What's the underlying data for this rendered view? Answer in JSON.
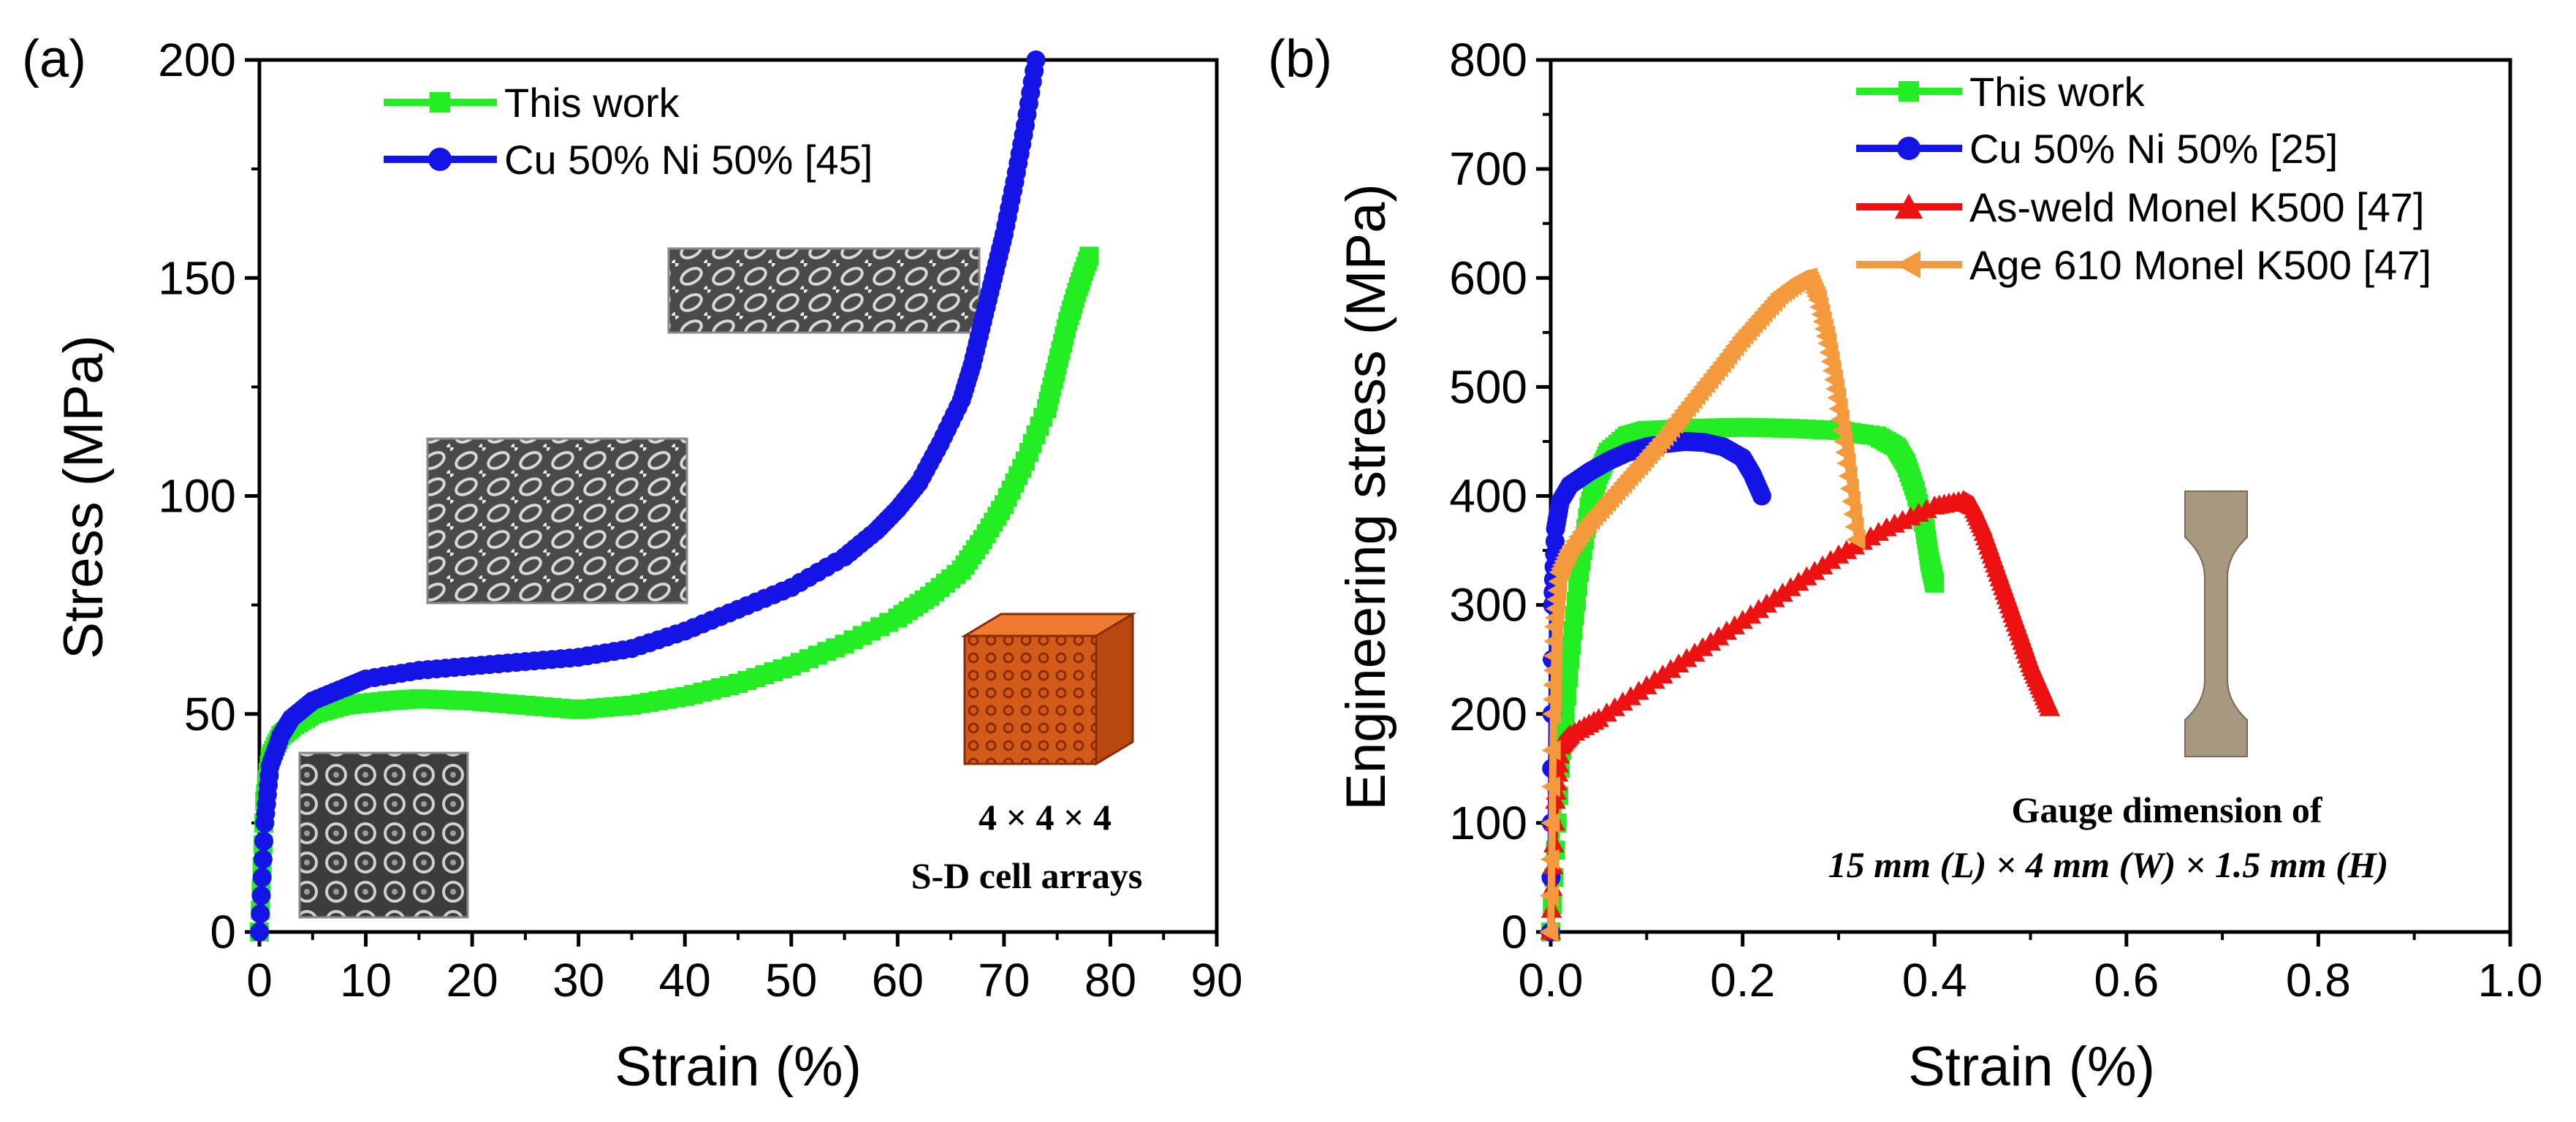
{
  "chart_data": [
    {
      "type": "scatter",
      "panel_label": "(a)",
      "xlabel": "Strain (%)",
      "ylabel": "Stress (MPa)",
      "xlim": [
        0,
        90
      ],
      "ylim": [
        0,
        200
      ],
      "xticks": [
        "0",
        "10",
        "20",
        "30",
        "40",
        "50",
        "60",
        "70",
        "80",
        "90"
      ],
      "yticks": [
        "0",
        "50",
        "100",
        "150",
        "200"
      ],
      "legend_position": "top-left",
      "annotation_lines": [
        "4 × 4 × 4",
        "S-D cell arrays"
      ],
      "series": [
        {
          "name": "This work",
          "color": "#22ee22",
          "marker": "square",
          "x": [
            0,
            0.5,
            1,
            2,
            3,
            5,
            8,
            12,
            15,
            20,
            25,
            30,
            35,
            40,
            45,
            50,
            55,
            60,
            63,
            66,
            68,
            70,
            72,
            74,
            75,
            76,
            77,
            78
          ],
          "y": [
            0,
            30,
            40,
            45,
            47,
            50,
            52,
            53,
            53.5,
            53,
            52,
            51,
            52,
            54,
            57,
            61,
            66,
            72,
            77,
            83,
            90,
            98,
            108,
            120,
            130,
            140,
            148,
            155
          ]
        },
        {
          "name": "Cu 50% Ni 50%  [45]",
          "color": "#1414e6",
          "marker": "circle",
          "x": [
            0,
            0.5,
            1,
            2,
            3,
            5,
            8,
            10,
            15,
            20,
            25,
            30,
            35,
            40,
            45,
            50,
            55,
            58,
            60,
            62,
            64,
            66,
            67,
            68,
            69,
            70,
            71,
            72,
            73
          ],
          "y": [
            0,
            25,
            38,
            45,
            49,
            53,
            56,
            58,
            60,
            61,
            62,
            63,
            65,
            69,
            74,
            79,
            86,
            92,
            97,
            103,
            112,
            122,
            130,
            140,
            150,
            160,
            172,
            185,
            200
          ]
        }
      ]
    },
    {
      "type": "scatter",
      "panel_label": "(b)",
      "xlabel": "Strain (%)",
      "ylabel": "Engineering stress (MPa)",
      "xlim": [
        0,
        1.0
      ],
      "ylim": [
        0,
        800
      ],
      "xticks": [
        "0.0",
        "0.2",
        "0.4",
        "0.6",
        "0.8",
        "1.0"
      ],
      "yticks": [
        "0",
        "100",
        "200",
        "300",
        "400",
        "500",
        "600",
        "700",
        "800"
      ],
      "legend_position": "top-center",
      "annotation_lines": [
        "Gauge dimension of",
        "15 mm (L) × 4 mm (W) × 1.5 mm (H)"
      ],
      "series": [
        {
          "name": "This work",
          "color": "#22ee22",
          "marker": "square",
          "x": [
            0,
            0.01,
            0.02,
            0.03,
            0.04,
            0.05,
            0.06,
            0.08,
            0.1,
            0.15,
            0.2,
            0.25,
            0.3,
            0.34,
            0.36,
            0.37,
            0.38,
            0.39,
            0.395,
            0.4
          ],
          "y": [
            0,
            150,
            250,
            330,
            390,
            420,
            440,
            455,
            460,
            462,
            463,
            462,
            460,
            455,
            445,
            430,
            405,
            370,
            340,
            320
          ]
        },
        {
          "name": "Cu 50% Ni 50%  [25]",
          "color": "#1414e6",
          "marker": "circle",
          "x": [
            0,
            0.002,
            0.005,
            0.01,
            0.02,
            0.04,
            0.06,
            0.08,
            0.1,
            0.12,
            0.14,
            0.16,
            0.18,
            0.2,
            0.21,
            0.22
          ],
          "y": [
            0,
            300,
            370,
            395,
            410,
            422,
            432,
            440,
            445,
            448,
            450,
            449,
            445,
            435,
            420,
            400
          ]
        },
        {
          "name": "As-weld Monel K500 [47]",
          "color": "#ee1111",
          "marker": "triangle-up",
          "x": [
            0,
            0.005,
            0.01,
            0.02,
            0.05,
            0.1,
            0.15,
            0.2,
            0.25,
            0.3,
            0.35,
            0.4,
            0.43,
            0.44,
            0.45,
            0.46,
            0.47,
            0.48,
            0.49,
            0.5,
            0.51,
            0.52
          ],
          "y": [
            0,
            120,
            170,
            180,
            195,
            225,
            255,
            285,
            315,
            345,
            370,
            390,
            395,
            390,
            370,
            345,
            320,
            295,
            270,
            245,
            225,
            205
          ]
        },
        {
          "name": "Age 610 Monel K500 [47]",
          "color": "#f59a3c",
          "marker": "triangle-left",
          "x": [
            0,
            0.003,
            0.005,
            0.01,
            0.02,
            0.04,
            0.06,
            0.08,
            0.1,
            0.12,
            0.14,
            0.16,
            0.18,
            0.2,
            0.22,
            0.24,
            0.26,
            0.27,
            0.28,
            0.29,
            0.3,
            0.31,
            0.32
          ],
          "y": [
            0,
            200,
            280,
            330,
            350,
            375,
            395,
            415,
            435,
            455,
            478,
            500,
            522,
            545,
            565,
            585,
            598,
            600,
            580,
            540,
            490,
            430,
            360
          ]
        }
      ]
    }
  ]
}
